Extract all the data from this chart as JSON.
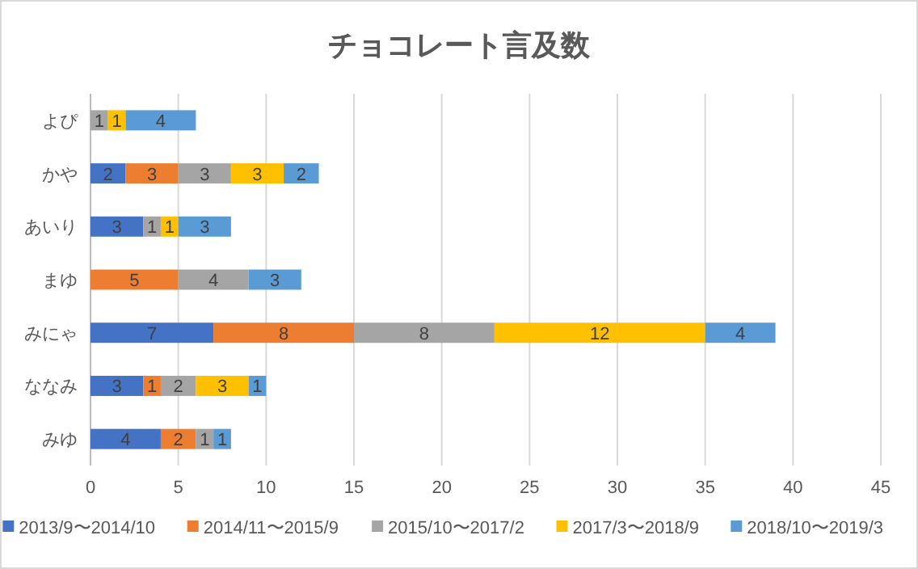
{
  "chart_data": {
    "type": "bar",
    "orientation": "horizontal",
    "stacked": true,
    "title": "チョコレート言及数",
    "categories": [
      "よぴ",
      "かや",
      "あいり",
      "まゆ",
      "みにゃ",
      "ななみ",
      "みゆ"
    ],
    "series": [
      {
        "name": "2013/9〜2014/10",
        "color": "#4472c4",
        "values": [
          null,
          2,
          3,
          null,
          7,
          3,
          4
        ]
      },
      {
        "name": "2014/11〜2015/9",
        "color": "#ed7d31",
        "values": [
          null,
          3,
          null,
          5,
          8,
          1,
          2
        ]
      },
      {
        "name": "2015/10〜2017/2",
        "color": "#a5a5a5",
        "values": [
          1,
          3,
          1,
          4,
          8,
          2,
          1
        ]
      },
      {
        "name": "2017/3〜2018/9",
        "color": "#ffc000",
        "values": [
          1,
          3,
          1,
          null,
          12,
          3,
          null
        ]
      },
      {
        "name": "2018/10〜2019/3",
        "color": "#5b9bd5",
        "values": [
          4,
          2,
          3,
          3,
          4,
          1,
          1
        ]
      }
    ],
    "xlim": [
      0,
      45
    ],
    "xticks": [
      0,
      5,
      10,
      15,
      20,
      25,
      30,
      35,
      40,
      45
    ],
    "grid": "x",
    "legend": "bottom",
    "data_labels": true
  }
}
